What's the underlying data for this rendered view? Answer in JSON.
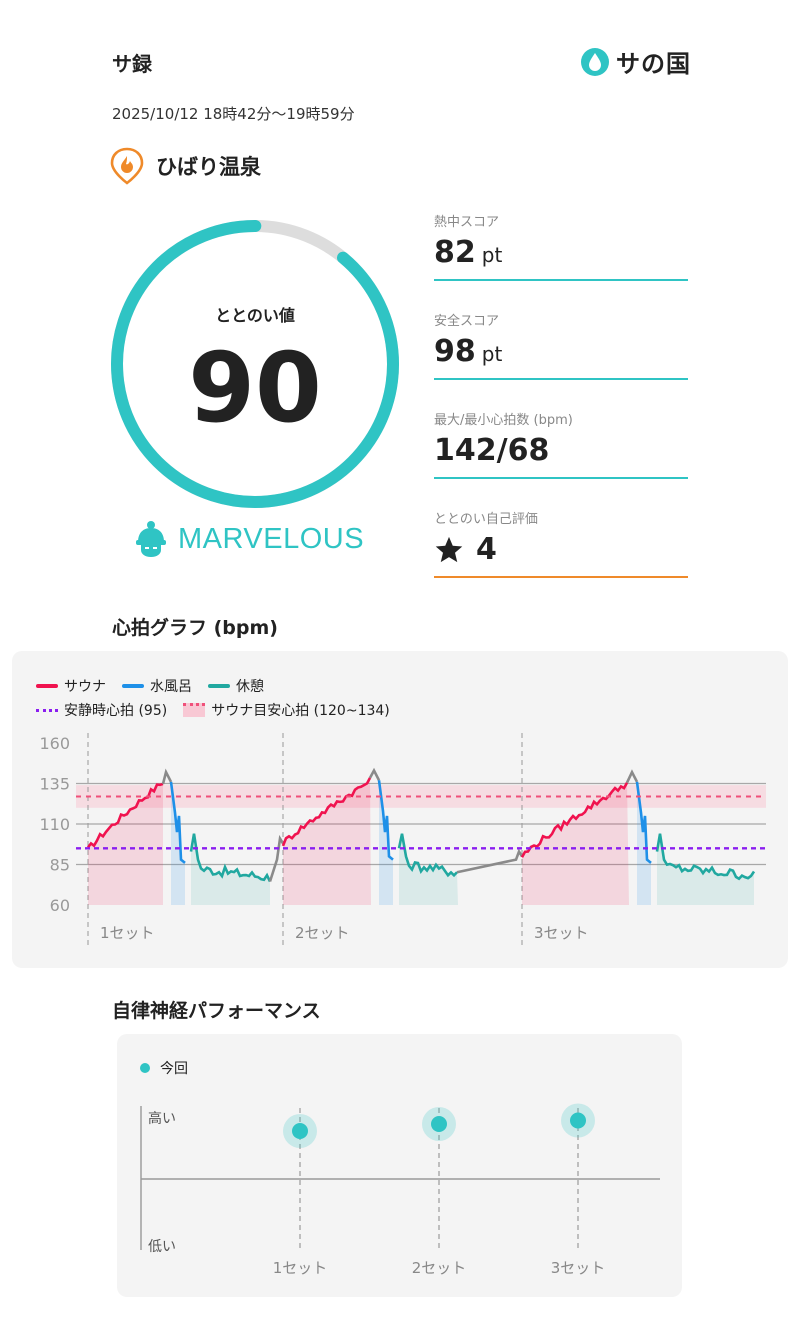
{
  "header": {
    "title": "サ録",
    "brand_text": "サの国",
    "datetime": "2025/10/12 18時42分〜19時59分"
  },
  "facility": {
    "name": "ひばり温泉",
    "icon": "flame-pin-icon"
  },
  "score": {
    "label": "ととのい値",
    "value": "90",
    "progress_fraction": 0.89,
    "rating": "MARVELOUS",
    "rating_icon": "sauna-hat-icon"
  },
  "stats": [
    {
      "label": "熱中スコア",
      "value": "82",
      "unit": "pt"
    },
    {
      "label": "安全スコア",
      "value": "98",
      "unit": "pt"
    },
    {
      "label": "最大/最小心拍数 (bpm)",
      "value": "142/68",
      "unit": ""
    },
    {
      "label": "ととのい自己評価",
      "value": "4",
      "unit": "",
      "icon": "star-icon"
    }
  ],
  "heart_graph": {
    "title": "心拍グラフ (bpm)",
    "legend": {
      "sauna": "サウナ",
      "bath": "水風呂",
      "rest": "休憩",
      "resting": "安静時心拍 (95)",
      "target": "サウナ目安心拍 (120~134)"
    },
    "colors": {
      "sauna": "#f0134f",
      "bath": "#1e90e8",
      "rest": "#21a8a0",
      "transition": "#8a8a8a",
      "resting": "#8a1ef0",
      "target": "#f0507a"
    }
  },
  "chart_data": [
    {
      "type": "line",
      "title": "心拍グラフ (bpm)",
      "ylim": [
        60,
        160
      ],
      "yticks": [
        "160",
        "135",
        "110",
        "85",
        "60"
      ],
      "x": [
        "1セット",
        "2セット",
        "3セット"
      ],
      "resting_hr": 95,
      "target_band": [
        120,
        134
      ],
      "sets": [
        {
          "label": "1セット",
          "sauna_start": 94,
          "sauna_peak": 142,
          "bath_low": 88,
          "rest_level": 77
        },
        {
          "label": "2セット",
          "sauna_start": 98,
          "sauna_peak": 143,
          "bath_low": 90,
          "rest_level": 80
        },
        {
          "label": "3セット",
          "sauna_start": 90,
          "sauna_peak": 142,
          "bath_low": 88,
          "rest_level": 78
        }
      ],
      "series": [
        {
          "name": "サウナ"
        },
        {
          "name": "水風呂"
        },
        {
          "name": "休憩"
        }
      ]
    },
    {
      "type": "scatter",
      "title": "自律神経パフォーマンス",
      "categories": [
        "1セット",
        "2セット",
        "3セット"
      ],
      "values": [
        0.68,
        0.72,
        0.74
      ],
      "ylabels": [
        "高い",
        "低い"
      ],
      "series": [
        {
          "name": "今回"
        }
      ]
    }
  ],
  "ans": {
    "title": "自律神経パフォーマンス",
    "legend": "今回",
    "high": "高い",
    "low": "低い"
  }
}
